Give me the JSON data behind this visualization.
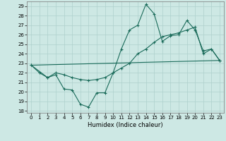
{
  "xlabel": "Humidex (Indice chaleur)",
  "xlim": [
    -0.5,
    23.5
  ],
  "ylim": [
    17.8,
    29.5
  ],
  "xticks": [
    0,
    1,
    2,
    3,
    4,
    5,
    6,
    7,
    8,
    9,
    10,
    11,
    12,
    13,
    14,
    15,
    16,
    17,
    18,
    19,
    20,
    21,
    22,
    23
  ],
  "yticks": [
    18,
    19,
    20,
    21,
    22,
    23,
    24,
    25,
    26,
    27,
    28,
    29
  ],
  "bg_color": "#cde8e4",
  "grid_color": "#aed0cc",
  "line_color": "#1a6b5a",
  "line1_x": [
    0,
    1,
    2,
    3,
    4,
    5,
    6,
    7,
    8,
    9,
    10,
    11,
    12,
    13,
    14,
    15,
    16,
    17,
    18,
    19,
    20,
    21,
    22,
    23
  ],
  "line1_y": [
    22.8,
    22.0,
    21.5,
    21.8,
    20.3,
    20.2,
    18.7,
    18.4,
    19.9,
    19.9,
    22.0,
    24.5,
    26.5,
    27.0,
    29.2,
    28.2,
    25.3,
    25.9,
    26.0,
    27.5,
    26.5,
    24.3,
    24.5,
    23.3
  ],
  "line2_x": [
    0,
    2,
    3,
    4,
    5,
    6,
    7,
    8,
    9,
    10,
    11,
    12,
    13,
    14,
    15,
    16,
    17,
    18,
    19,
    20,
    21,
    22,
    23
  ],
  "line2_y": [
    22.8,
    21.5,
    22.0,
    21.8,
    21.5,
    21.3,
    21.2,
    21.3,
    21.5,
    22.0,
    22.5,
    23.0,
    24.0,
    24.5,
    25.2,
    25.8,
    26.0,
    26.2,
    26.5,
    26.8,
    24.0,
    24.5,
    23.3
  ],
  "line3_x": [
    0,
    23
  ],
  "line3_y": [
    22.8,
    23.3
  ]
}
